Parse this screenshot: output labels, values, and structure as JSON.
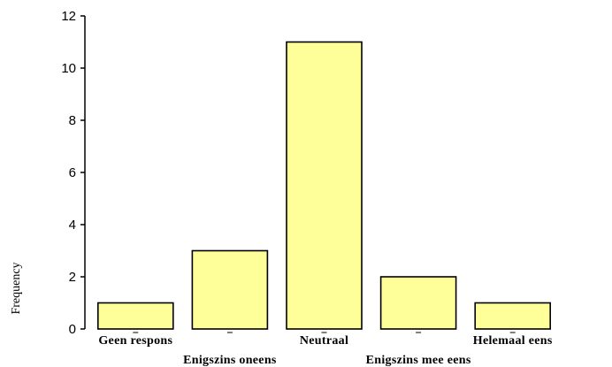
{
  "chart_data": {
    "type": "bar",
    "categories": [
      "Geen respons",
      "Enigszins oneens",
      "Neutraal",
      "Enigszins mee eens",
      "Helemaal eens"
    ],
    "values": [
      1,
      3,
      11,
      2,
      1
    ],
    "xlabel": "",
    "ylabel": "Frequency",
    "ylim": [
      0,
      12
    ],
    "yticks": [
      0,
      2,
      4,
      6,
      8,
      10,
      12
    ],
    "grid": false,
    "legend": "none",
    "colors": {
      "bar_fill": "#ffff99",
      "bar_stroke": "#000000",
      "axis": "#000000",
      "background": "#ffffff"
    }
  }
}
